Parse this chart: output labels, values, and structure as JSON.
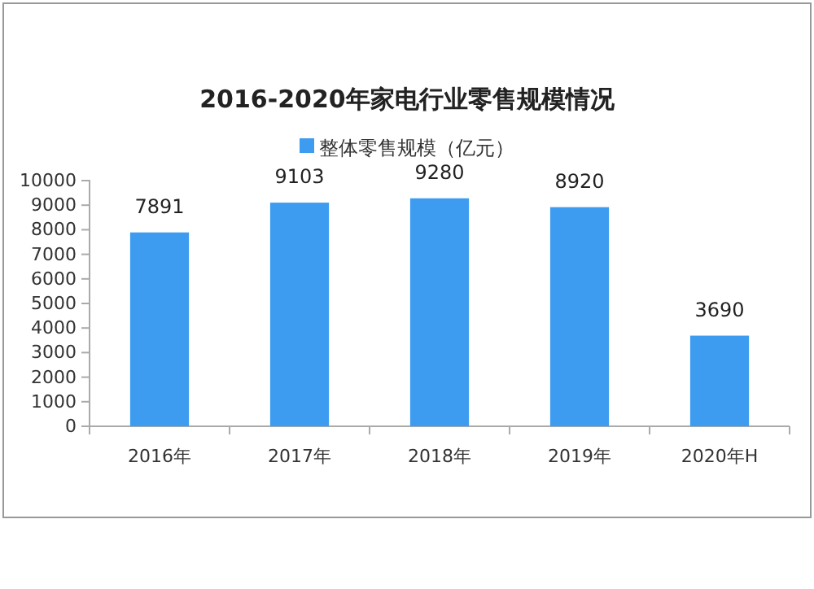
{
  "chart_data": {
    "type": "bar",
    "title": "2016-2020年家电行业零售规模情况",
    "categories": [
      "2016年",
      "2017年",
      "2018年",
      "2019年",
      "2020年H"
    ],
    "series": [
      {
        "name": "整体零售规模（亿元）",
        "color": "#3d9cf0",
        "values": [
          7891,
          9103,
          9280,
          8920,
          3690
        ]
      }
    ],
    "ylim": [
      0,
      10000
    ],
    "yticks": [
      0,
      1000,
      2000,
      3000,
      4000,
      5000,
      6000,
      7000,
      8000,
      9000,
      10000
    ],
    "data_labels": true,
    "legend": "top",
    "grid": false
  }
}
